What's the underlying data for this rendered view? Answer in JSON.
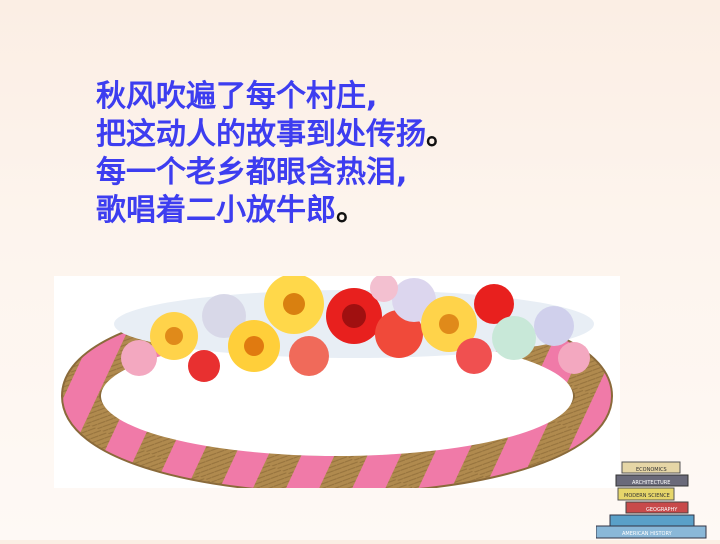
{
  "poem": {
    "lines": [
      {
        "text": "秋风吹遍了每个村庄,",
        "end": ""
      },
      {
        "text": "把这动人的故事到处传扬",
        "end": "。"
      },
      {
        "text": "每一个老乡都眼含热泪,",
        "end": ""
      },
      {
        "text": "歌唱着二小放牛郎",
        "end": "。"
      }
    ]
  },
  "books_labels": [
    "ECONOMICS",
    "ARCHITECTURE",
    "MODERN SCIENCE",
    "GEOGRAPHY",
    "AMERICAN HISTORY"
  ],
  "colors": {
    "text": "#3d3df0",
    "background": "#fbeee4",
    "ribbon_pink": "#f07aa8",
    "wicker": "#b08a4e"
  }
}
